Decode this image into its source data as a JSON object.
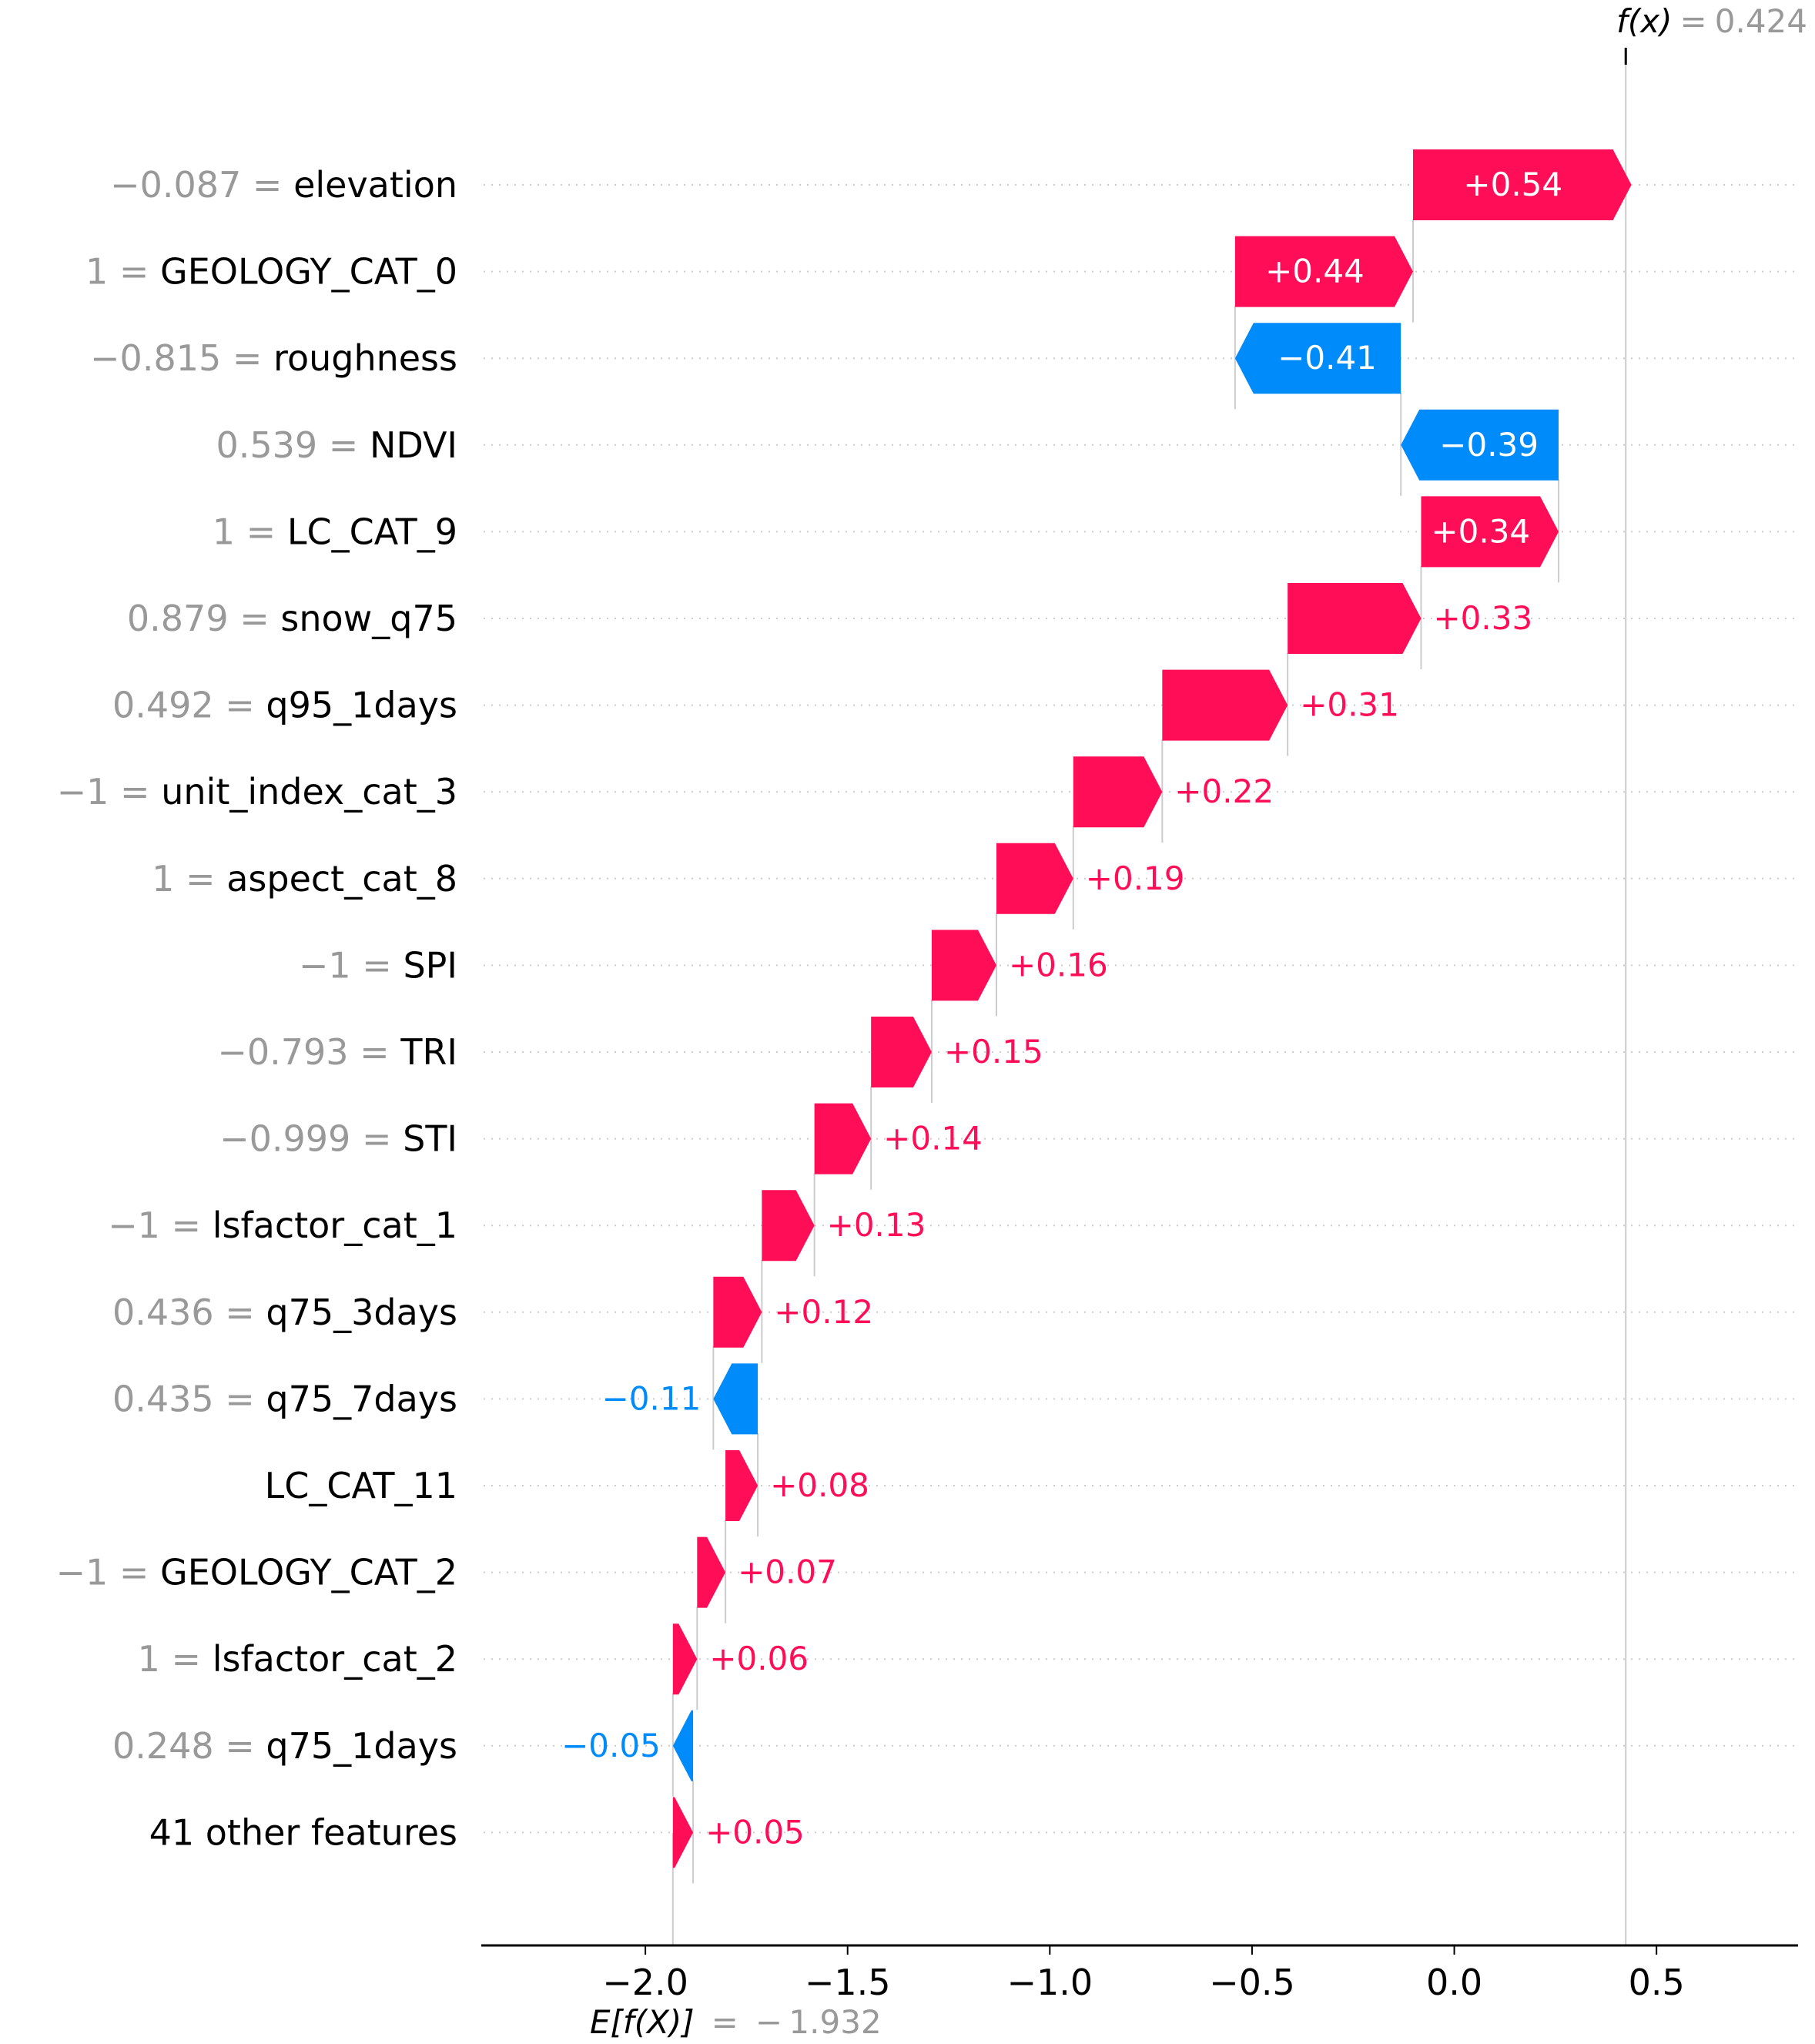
{
  "chart_data": {
    "type": "waterfall",
    "title": "",
    "colors": {
      "positive": "#ff0d57",
      "negative": "#008bfb",
      "axis": "#000000",
      "muted": "#999999",
      "grid": "#cccccc"
    },
    "base_value": -1.932,
    "base_label": {
      "expr": "E[f(X)]",
      "eq": "=",
      "value": "− 1.932"
    },
    "output_value": 0.424,
    "output_label": {
      "expr": "f(x)",
      "eq": "=",
      "value": "0.424"
    },
    "xlim": [
      -2.4,
      0.85
    ],
    "xticks": [
      -2.0,
      -1.5,
      -1.0,
      -0.5,
      0.0,
      0.5
    ],
    "xtick_labels": [
      "−2.0",
      "−1.5",
      "−1.0",
      "−0.5",
      "0.0",
      "0.5"
    ],
    "features": [
      {
        "value_text": "−0.087",
        "name": "elevation",
        "contribution": 0.54,
        "label": "+0.54"
      },
      {
        "value_text": "1",
        "name": "GEOLOGY_CAT_0",
        "contribution": 0.44,
        "label": "+0.44"
      },
      {
        "value_text": "−0.815",
        "name": "roughness",
        "contribution": -0.41,
        "label": "−0.41"
      },
      {
        "value_text": "0.539",
        "name": "NDVI",
        "contribution": -0.39,
        "label": "−0.39"
      },
      {
        "value_text": "1",
        "name": "LC_CAT_9",
        "contribution": 0.34,
        "label": "+0.34"
      },
      {
        "value_text": "0.879",
        "name": "snow_q75",
        "contribution": 0.33,
        "label": "+0.33"
      },
      {
        "value_text": "0.492",
        "name": "q95_1days",
        "contribution": 0.31,
        "label": "+0.31"
      },
      {
        "value_text": "−1",
        "name": "unit_index_cat_3",
        "contribution": 0.22,
        "label": "+0.22"
      },
      {
        "value_text": "1",
        "name": "aspect_cat_8",
        "contribution": 0.19,
        "label": "+0.19"
      },
      {
        "value_text": "−1",
        "name": "SPI",
        "contribution": 0.16,
        "label": "+0.16"
      },
      {
        "value_text": "−0.793",
        "name": "TRI",
        "contribution": 0.15,
        "label": "+0.15"
      },
      {
        "value_text": "−0.999",
        "name": "STI",
        "contribution": 0.14,
        "label": "+0.14"
      },
      {
        "value_text": "−1",
        "name": "lsfactor_cat_1",
        "contribution": 0.13,
        "label": "+0.13"
      },
      {
        "value_text": "0.436",
        "name": "q75_3days",
        "contribution": 0.12,
        "label": "+0.12"
      },
      {
        "value_text": "0.435",
        "name": "q75_7days",
        "contribution": -0.11,
        "label": "−0.11"
      },
      {
        "value_text": "",
        "name": "LC_CAT_11",
        "contribution": 0.08,
        "label": "+0.08"
      },
      {
        "value_text": "−1",
        "name": "GEOLOGY_CAT_2",
        "contribution": 0.07,
        "label": "+0.07"
      },
      {
        "value_text": "1",
        "name": "lsfactor_cat_2",
        "contribution": 0.06,
        "label": "+0.06"
      },
      {
        "value_text": "0.248",
        "name": "q75_1days",
        "contribution": -0.05,
        "label": "−0.05"
      },
      {
        "value_text": "",
        "name": "41 other features",
        "contribution": 0.05,
        "label": "+0.05"
      }
    ]
  }
}
